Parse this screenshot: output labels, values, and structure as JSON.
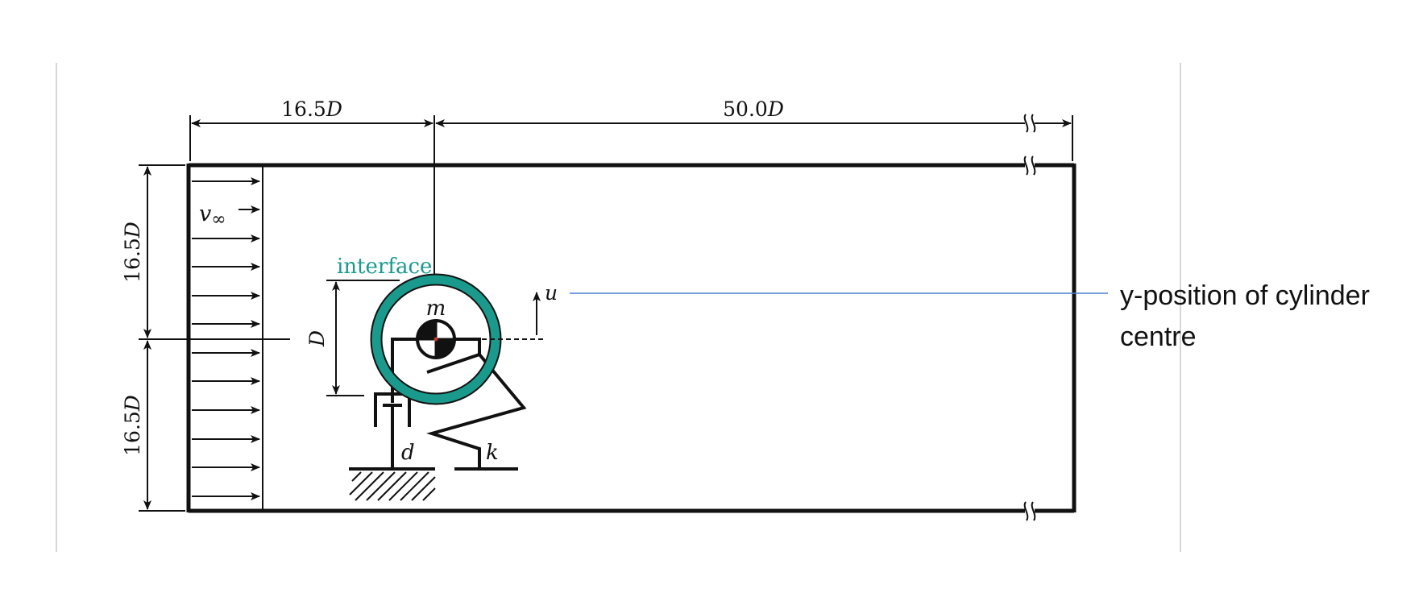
{
  "dimensions": {
    "inlet_width": "16.5",
    "domain_length": "50.0",
    "upper_height": "16.5",
    "lower_height": "16.5",
    "unit_symbol": "D",
    "diameter": "D"
  },
  "labels": {
    "freestream_symbol": "v",
    "freestream_subscript": "∞",
    "interface": "interface",
    "mass": "m",
    "displacement": "u",
    "damper": "d",
    "spring": "k"
  },
  "callout": {
    "text": "y-position of cylinder centre"
  },
  "colors": {
    "interface": "#1a9a8c",
    "callout_line": "#4a7fd6",
    "ink": "#111111",
    "slide_margin": "#c8c8c8"
  }
}
